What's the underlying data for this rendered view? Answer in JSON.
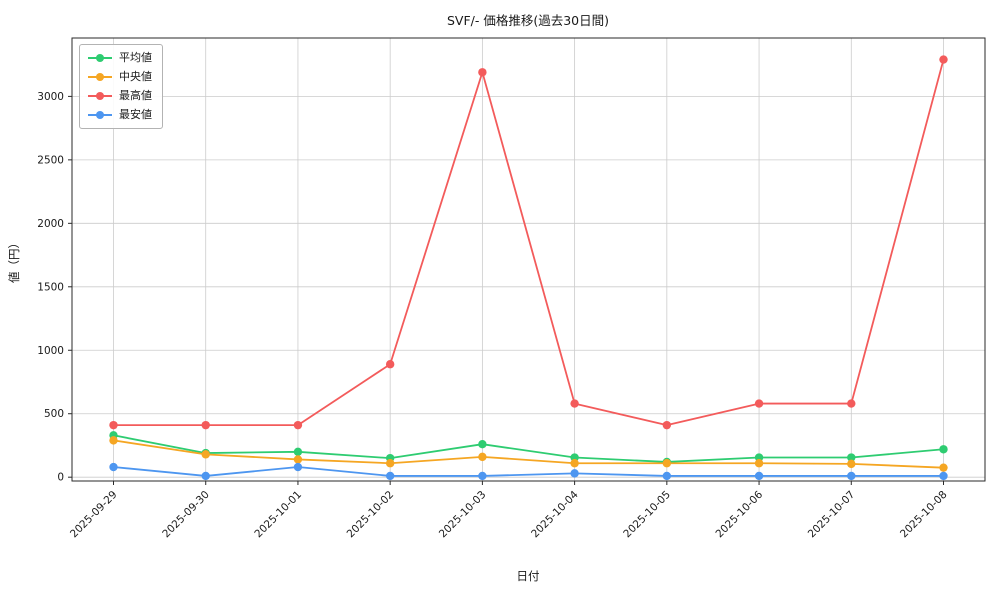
{
  "figure": {
    "background": "#ffffff",
    "grid_color": "#cccccc",
    "spine_color": "#2a2a2a"
  },
  "chart_data": {
    "type": "line",
    "title": "SVF/- 価格推移(過去30日間)",
    "xlabel": "日付",
    "ylabel": "値（円）",
    "categories": [
      "2025-09-29",
      "2025-09-30",
      "2025-10-01",
      "2025-10-02",
      "2025-10-03",
      "2025-10-04",
      "2025-10-05",
      "2025-10-06",
      "2025-10-07",
      "2025-10-08"
    ],
    "yticks": [
      0,
      500,
      1000,
      1500,
      2000,
      2500,
      3000
    ],
    "ylim": [
      -30,
      3460
    ],
    "grid": true,
    "legend_position": "upper-left",
    "marker": "circle",
    "series": [
      {
        "key": "average",
        "name": "平均値",
        "color": "#2ecc71",
        "values": [
          330,
          190,
          200,
          150,
          260,
          155,
          120,
          155,
          155,
          220
        ]
      },
      {
        "key": "median",
        "name": "中央値",
        "color": "#f5a623",
        "values": [
          290,
          180,
          140,
          110,
          160,
          110,
          110,
          110,
          105,
          75
        ]
      },
      {
        "key": "max",
        "name": "最高値",
        "color": "#f35b5b",
        "values": [
          410,
          410,
          410,
          890,
          3190,
          580,
          410,
          580,
          580,
          3290
        ]
      },
      {
        "key": "min",
        "name": "最安値",
        "color": "#4d96f0",
        "values": [
          80,
          10,
          80,
          10,
          10,
          30,
          10,
          10,
          10,
          10
        ]
      }
    ]
  }
}
